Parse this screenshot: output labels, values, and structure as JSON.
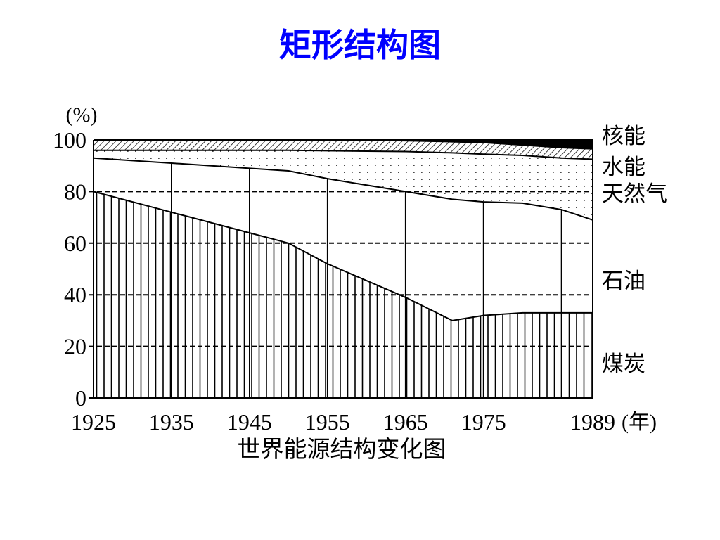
{
  "slide": {
    "title": "矩形结构图",
    "title_color": "#0000ff",
    "background": "#ffffff"
  },
  "chart_data": {
    "type": "area",
    "stacked": true,
    "title": "世界能源结构变化图",
    "ylabel": "(%)",
    "xlabel": "(年)",
    "ylim": [
      0,
      100
    ],
    "xlim": [
      1925,
      1989
    ],
    "yticks": [
      0,
      20,
      40,
      60,
      80,
      100
    ],
    "xticks": [
      1925,
      1935,
      1945,
      1955,
      1965,
      1975,
      1989
    ],
    "grid": true,
    "grid_y": [
      20,
      40,
      60,
      80
    ],
    "decade_lines": [
      1935,
      1945,
      1955,
      1965,
      1975,
      1985
    ],
    "legend": "right",
    "x": [
      1925,
      1935,
      1945,
      1950,
      1955,
      1965,
      1971,
      1975,
      1980,
      1985,
      1989
    ],
    "series": [
      {
        "name": "煤炭",
        "fill": "vertical-hatch",
        "values": [
          80,
          72,
          64,
          60,
          52,
          39,
          30,
          32,
          33,
          33,
          33
        ]
      },
      {
        "name": "石油",
        "fill": "#ffffff",
        "values": [
          13,
          19,
          25,
          28,
          33,
          41,
          47,
          44,
          42.5,
          40,
          36
        ]
      },
      {
        "name": "天然气",
        "fill": "dots",
        "values": [
          3,
          5,
          7,
          8,
          10.8,
          15.5,
          18,
          18.5,
          18.5,
          20,
          23.5
        ]
      },
      {
        "name": "水能",
        "fill": "diagonal-hatch",
        "values": [
          4,
          4,
          4,
          4,
          4.2,
          4.2,
          4.3,
          4.5,
          4,
          4,
          4
        ]
      },
      {
        "name": "核能",
        "fill": "#000000",
        "values": [
          0,
          0,
          0,
          0,
          0,
          0.3,
          0.7,
          1,
          2,
          3,
          3.5
        ]
      }
    ]
  }
}
